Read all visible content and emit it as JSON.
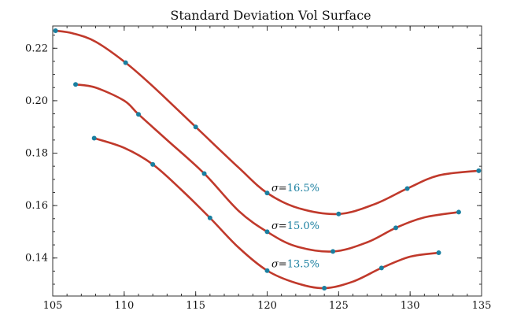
{
  "chart_data": {
    "type": "line",
    "title": "Standard Deviation Vol Surface",
    "xlabel": "",
    "ylabel": "",
    "xlim": [
      105,
      135
    ],
    "ylim": [
      0.1255,
      0.2285
    ],
    "x_ticks": [
      "105",
      "110",
      "115",
      "120",
      "125",
      "130",
      "135"
    ],
    "y_ticks": [
      "0.14",
      "0.16",
      "0.18",
      "0.20",
      "0.22"
    ],
    "grid": false,
    "legend": "none",
    "line_color": "#c0392b",
    "point_color": "#1a7fa0",
    "label_color_symbol": "#111111",
    "label_color_value": "#1a7fa0",
    "series": [
      {
        "label_symbol": "σ=",
        "label_value": "16.5%",
        "label_at": [
          120.3,
          0.1655
        ],
        "x": [
          105.2,
          106.4,
          108.0,
          110.1,
          112.0,
          115.0,
          118.0,
          120.0,
          122.2,
          125.0,
          127.5,
          129.8,
          132.0,
          134.8
        ],
        "y": [
          0.2267,
          0.2257,
          0.2225,
          0.2145,
          0.2055,
          0.19,
          0.1745,
          0.1648,
          0.159,
          0.1568,
          0.1605,
          0.1665,
          0.1715,
          0.1733
        ],
        "points_x": [
          105.2,
          110.1,
          115.0,
          120.0,
          125.0,
          129.8,
          134.8
        ],
        "points_y": [
          0.2267,
          0.2145,
          0.19,
          0.1648,
          0.1568,
          0.1665,
          0.1733
        ]
      },
      {
        "label_symbol": "σ=",
        "label_value": "15.0%",
        "label_at": [
          120.3,
          0.151
        ],
        "x": [
          106.6,
          108.0,
          110.0,
          111.0,
          113.0,
          115.6,
          118.0,
          120.0,
          122.0,
          124.6,
          127.0,
          129.0,
          131.0,
          133.4
        ],
        "y": [
          0.2062,
          0.205,
          0.2,
          0.1948,
          0.185,
          0.1722,
          0.158,
          0.15,
          0.1445,
          0.1425,
          0.146,
          0.1515,
          0.1555,
          0.1575
        ],
        "points_x": [
          106.6,
          111.0,
          115.6,
          120.0,
          124.6,
          129.0,
          133.4
        ],
        "points_y": [
          0.2062,
          0.1948,
          0.1722,
          0.15,
          0.1425,
          0.1515,
          0.1575
        ]
      },
      {
        "label_symbol": "σ=",
        "label_value": "13.5%",
        "label_at": [
          120.3,
          0.1365
        ],
        "x": [
          107.9,
          110.0,
          112.0,
          114.0,
          116.0,
          118.0,
          120.0,
          122.0,
          124.0,
          126.0,
          128.0,
          130.0,
          132.0
        ],
        "y": [
          0.1857,
          0.182,
          0.1757,
          0.166,
          0.1553,
          0.144,
          0.1352,
          0.1305,
          0.1285,
          0.131,
          0.1362,
          0.1405,
          0.142
        ],
        "points_x": [
          107.9,
          112.0,
          116.0,
          120.0,
          124.0,
          128.0,
          132.0
        ],
        "points_y": [
          0.1857,
          0.1757,
          0.1553,
          0.1352,
          0.1285,
          0.1362,
          0.142
        ]
      }
    ]
  }
}
